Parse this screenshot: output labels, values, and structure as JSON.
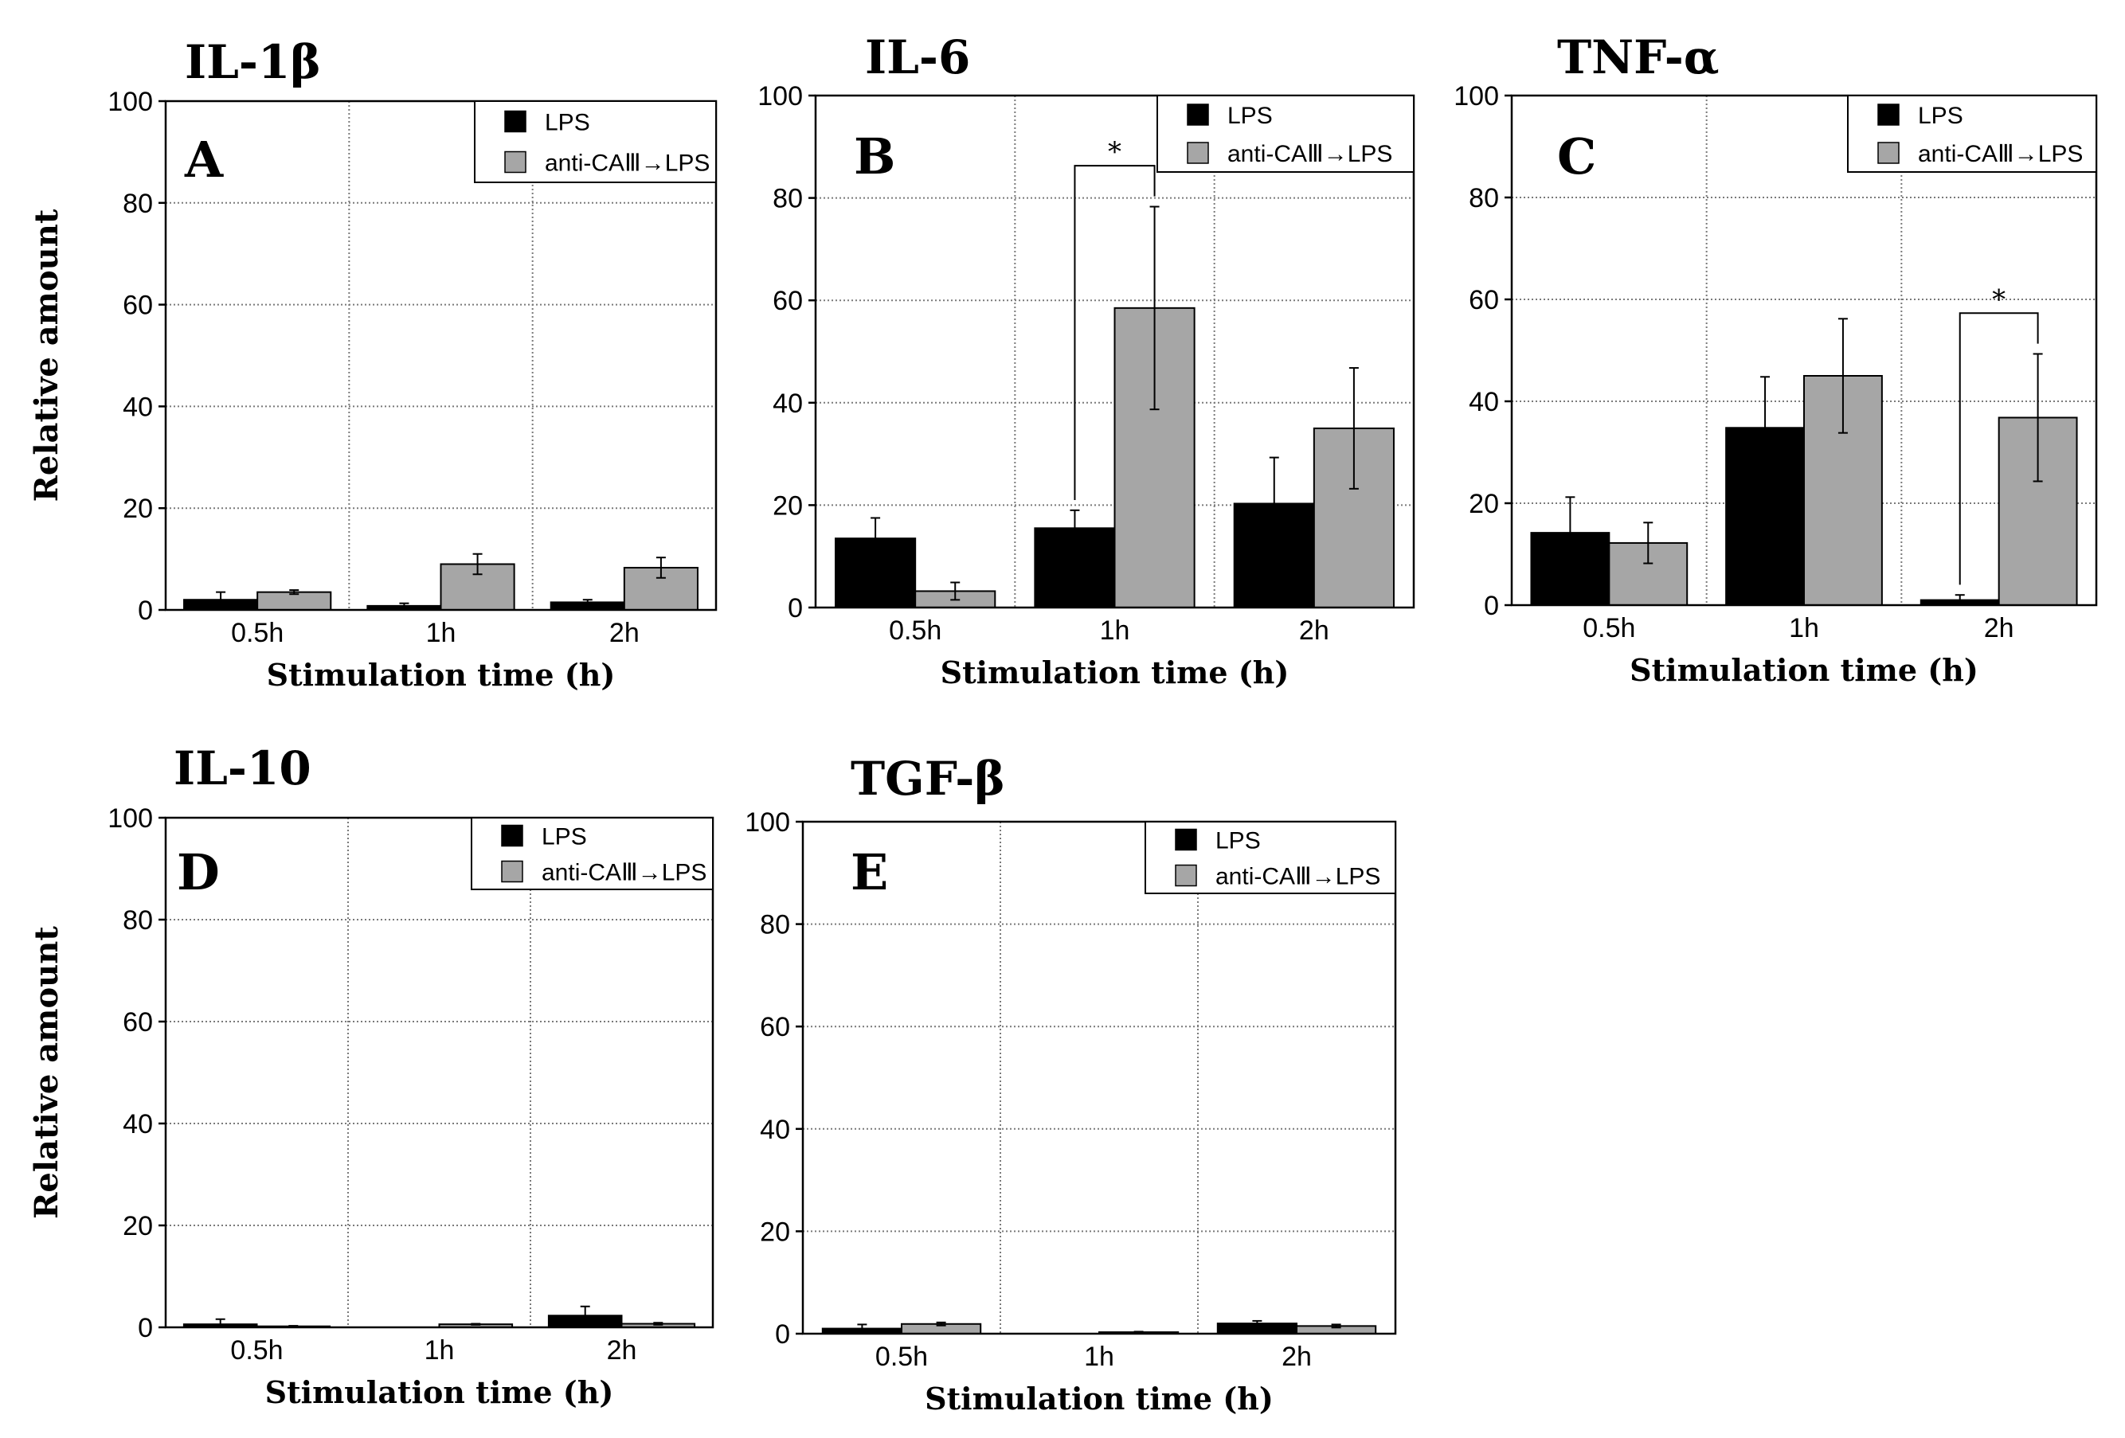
{
  "figure": {
    "ylabel": "Relative amount",
    "xlabel": "Stimulation time (h)",
    "yticks": [
      "0",
      "20",
      "40",
      "60",
      "80",
      "100"
    ],
    "categories": [
      "0.5h",
      "1h",
      "2h"
    ],
    "legend": [
      "LPS",
      "anti-CAⅢ→LPS"
    ],
    "significance_mark": "*"
  },
  "colors": {
    "lps": "#000000",
    "anti": "#a6a6a6",
    "grid": "#7a7a7a"
  },
  "chart_data": [
    {
      "type": "bar",
      "title": "IL-1β",
      "panel_label": "A",
      "categories": [
        "0.5h",
        "1h",
        "2h"
      ],
      "xlabel": "Stimulation time (h)",
      "ylabel": "Relative amount",
      "ylim": [
        0,
        100
      ],
      "grid": true,
      "legend": "top-right",
      "series": [
        {
          "name": "LPS",
          "values": [
            2.0,
            0.8,
            1.5
          ],
          "errors": [
            1.5,
            0.5,
            0.5
          ]
        },
        {
          "name": "anti-CAⅢ→LPS",
          "values": [
            3.5,
            9.0,
            8.3
          ],
          "errors": [
            0.4,
            2.0,
            2.0
          ]
        }
      ],
      "significance": []
    },
    {
      "type": "bar",
      "title": "IL-6",
      "panel_label": "B",
      "categories": [
        "0.5h",
        "1h",
        "2h"
      ],
      "xlabel": "Stimulation time (h)",
      "ylabel": "",
      "ylim": [
        0,
        100
      ],
      "grid": true,
      "legend": "top-right",
      "series": [
        {
          "name": "LPS",
          "values": [
            13.5,
            15.5,
            20.3
          ],
          "errors": [
            4.0,
            3.5,
            9.0
          ]
        },
        {
          "name": "anti-CAⅢ→LPS",
          "values": [
            3.2,
            58.5,
            35.0
          ],
          "errors": [
            1.7,
            19.8,
            11.8
          ]
        }
      ],
      "significance": [
        {
          "category": "1h",
          "label": "*"
        }
      ]
    },
    {
      "type": "bar",
      "title": "TNF-α",
      "panel_label": "C",
      "categories": [
        "0.5h",
        "1h",
        "2h"
      ],
      "xlabel": "Stimulation time (h)",
      "ylabel": "",
      "ylim": [
        0,
        100
      ],
      "grid": true,
      "legend": "top-right",
      "series": [
        {
          "name": "LPS",
          "values": [
            14.2,
            34.8,
            1.0
          ],
          "errors": [
            7.0,
            10.0,
            1.0
          ]
        },
        {
          "name": "anti-CAⅢ→LPS",
          "values": [
            12.2,
            45.0,
            36.8
          ],
          "errors": [
            4.0,
            11.2,
            12.5
          ]
        }
      ],
      "significance": [
        {
          "category": "2h",
          "label": "*"
        }
      ]
    },
    {
      "type": "bar",
      "title": "IL-10",
      "panel_label": "D",
      "categories": [
        "0.5h",
        "1h",
        "2h"
      ],
      "xlabel": "Stimulation time (h)",
      "ylabel": "Relative amount",
      "ylim": [
        0,
        100
      ],
      "grid": true,
      "legend": "top-right",
      "series": [
        {
          "name": "LPS",
          "values": [
            0.6,
            0.0,
            2.3
          ],
          "errors": [
            1.0,
            0.0,
            1.8
          ]
        },
        {
          "name": "anti-CAⅢ→LPS",
          "values": [
            0.2,
            0.6,
            0.7
          ],
          "errors": [
            0.1,
            0.1,
            0.2
          ]
        }
      ],
      "significance": []
    },
    {
      "type": "bar",
      "title": "TGF-β",
      "panel_label": "E",
      "categories": [
        "0.5h",
        "1h",
        "2h"
      ],
      "xlabel": "Stimulation time (h)",
      "ylabel": "",
      "ylim": [
        0,
        100
      ],
      "grid": true,
      "legend": "top-right",
      "series": [
        {
          "name": "LPS",
          "values": [
            1.0,
            0.0,
            2.0
          ],
          "errors": [
            0.8,
            0.0,
            0.5
          ]
        },
        {
          "name": "anti-CAⅢ→LPS",
          "values": [
            1.9,
            0.3,
            1.5
          ],
          "errors": [
            0.3,
            0.1,
            0.3
          ]
        }
      ],
      "significance": []
    }
  ]
}
